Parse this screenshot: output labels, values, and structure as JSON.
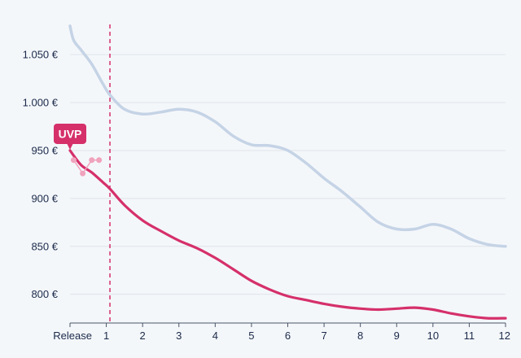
{
  "chart_data": {
    "type": "line",
    "x_ticks": [
      "Release",
      "1",
      "2",
      "3",
      "4",
      "5",
      "6",
      "7",
      "8",
      "9",
      "10",
      "11",
      "12"
    ],
    "y_ticks": [
      "800 €",
      "850 €",
      "900 €",
      "950 €",
      "1.000 €",
      "1.050 €"
    ],
    "y_tick_values": [
      800,
      850,
      900,
      950,
      1000,
      1050
    ],
    "xlim": [
      0,
      12
    ],
    "ylim": [
      770,
      1090
    ],
    "grid": "horizontal",
    "release_marker_x": 1.1,
    "annotation": {
      "label": "UVP",
      "x": 0,
      "y": 950
    },
    "series": [
      {
        "color": "#c5d3e6",
        "x": [
          0,
          0.1,
          0.3,
          0.6,
          0.9,
          1.1,
          1.5,
          2.0,
          2.5,
          3.0,
          3.5,
          4.0,
          4.5,
          5.0,
          5.5,
          6.0,
          6.5,
          7.0,
          7.5,
          8.0,
          8.5,
          9.0,
          9.5,
          10.0,
          10.5,
          11.0,
          11.5,
          12.0
        ],
        "y": [
          1080,
          1065,
          1055,
          1040,
          1020,
          1008,
          993,
          988,
          990,
          993,
          990,
          980,
          965,
          956,
          955,
          950,
          937,
          921,
          907,
          891,
          875,
          868,
          868,
          873,
          868,
          858,
          852,
          850
        ]
      },
      {
        "color": "#d5306a",
        "x": [
          0,
          0.3,
          0.6,
          0.9,
          1.1,
          1.5,
          2.0,
          2.5,
          3.0,
          3.5,
          4.0,
          4.5,
          5.0,
          5.5,
          6.0,
          6.5,
          7.0,
          7.5,
          8.0,
          8.5,
          9.0,
          9.5,
          10.0,
          10.5,
          11.0,
          11.5,
          12.0
        ],
        "y": [
          950,
          935,
          927,
          917,
          910,
          893,
          877,
          866,
          856,
          848,
          838,
          826,
          814,
          805,
          798,
          794,
          790,
          787,
          785,
          784,
          785,
          786,
          784,
          780,
          777,
          775,
          775
        ]
      },
      {
        "color": "#f0a3bd",
        "markers": true,
        "x": [
          0.1,
          0.35,
          0.6,
          0.8
        ],
        "y": [
          940,
          926,
          940,
          940
        ]
      }
    ]
  }
}
